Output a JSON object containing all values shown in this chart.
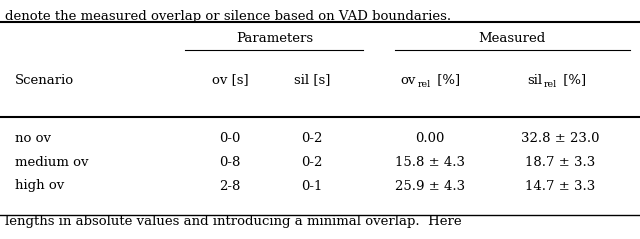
{
  "top_text": "denote the measured overlap or silence based on VAD boundaries.",
  "bottom_text": "lengths in absolute values and introducing a minimal overlap.  Here",
  "rows": [
    [
      "no ov",
      "0-0",
      "0-2",
      "0.00",
      "32.8 ± 23.0"
    ],
    [
      "medium ov",
      "0-8",
      "0-2",
      "15.8 ± 4.3",
      "18.7 ± 3.3"
    ],
    [
      "high ov",
      "2-8",
      "0-1",
      "25.9 ± 4.3",
      "14.7 ± 3.3"
    ]
  ],
  "background_color": "#ffffff",
  "text_color": "#000000",
  "font_size": 9.5
}
